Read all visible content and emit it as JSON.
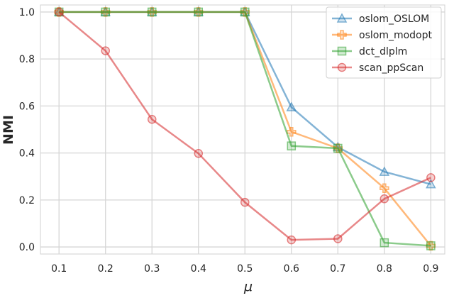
{
  "chart_data": {
    "type": "line",
    "xlabel": "μ",
    "ylabel": "NMI",
    "x": [
      0.1,
      0.2,
      0.3,
      0.4,
      0.5,
      0.6,
      0.7,
      0.8,
      0.9
    ],
    "xticks": [
      "0.1",
      "0.2",
      "0.3",
      "0.4",
      "0.5",
      "0.6",
      "0.7",
      "0.8",
      "0.9"
    ],
    "yticks": [
      "0.0",
      "0.2",
      "0.4",
      "0.6",
      "0.8",
      "1.0"
    ],
    "xlim": [
      0.06,
      0.93
    ],
    "ylim": [
      -0.03,
      1.03
    ],
    "grid": true,
    "legend_position": "top-right",
    "series": [
      {
        "name": "oslom_OSLOM",
        "color": "#1f77b4",
        "marker": "triangle",
        "values": [
          1,
          1,
          1,
          1,
          1,
          0.595,
          0.425,
          0.32,
          0.267
        ]
      },
      {
        "name": "oslom_modopt",
        "color": "#ff7f0e",
        "marker": "cross",
        "values": [
          1,
          1,
          1,
          1,
          1,
          0.49,
          0.42,
          0.25,
          0.005
        ]
      },
      {
        "name": "dct_dlplm",
        "color": "#2ca02c",
        "marker": "square",
        "values": [
          1,
          1,
          1,
          1,
          1,
          0.43,
          0.42,
          0.018,
          0.005
        ]
      },
      {
        "name": "scan_ppScan",
        "color": "#d62728",
        "marker": "circle",
        "values": [
          1,
          0.835,
          0.543,
          0.398,
          0.19,
          0.03,
          0.035,
          0.205,
          0.295
        ]
      }
    ]
  }
}
